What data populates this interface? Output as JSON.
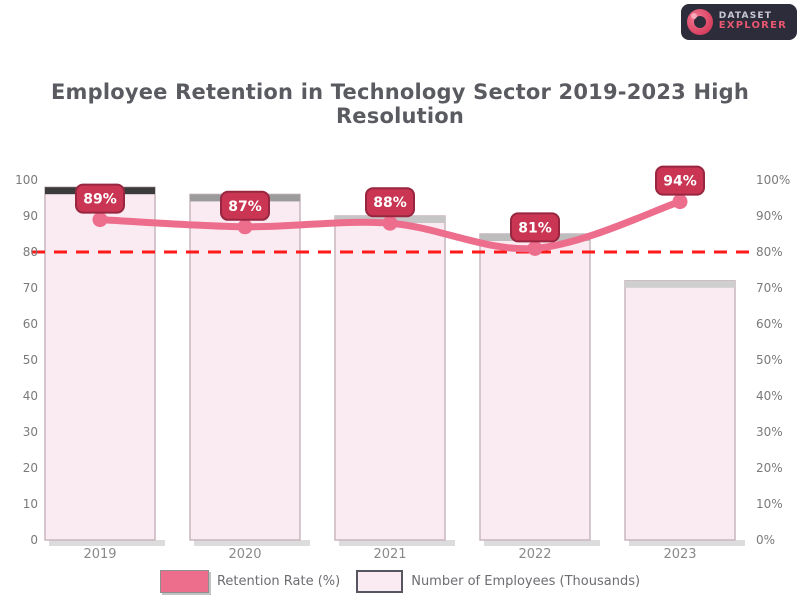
{
  "logo": {
    "line1": "DATASET",
    "line2": "EXPLORER",
    "icon": "magnifier-circle-icon"
  },
  "chart_data": {
    "type": "bar+line",
    "title": "Employee Retention in Technology Sector 2019-2023 High Resolution",
    "categories": [
      "2019",
      "2020",
      "2021",
      "2022",
      "2023"
    ],
    "series": [
      {
        "name": "Retention Rate (%)",
        "type": "line",
        "axis": "right",
        "values": [
          89,
          87,
          88,
          81,
          94
        ],
        "point_labels": [
          "89%",
          "87%",
          "88%",
          "81%",
          "94%"
        ],
        "color": "#ed6d8c"
      },
      {
        "name": "Number of Employees (Thousands)",
        "type": "bar",
        "axis": "left",
        "values": [
          98,
          96,
          90,
          85,
          72
        ],
        "color": "#faeaf1"
      }
    ],
    "threshold_line": {
      "value": 80,
      "color": "#ff1a1a",
      "style": "dashed"
    },
    "left_axis": {
      "min": 0,
      "max": 100,
      "ticks": [
        "0",
        "10",
        "20",
        "30",
        "40",
        "50",
        "60",
        "70",
        "80",
        "90",
        "100"
      ]
    },
    "right_axis": {
      "min": 0,
      "max": 100,
      "ticks": [
        "0%",
        "10%",
        "20%",
        "30%",
        "40%",
        "50%",
        "60%",
        "70%",
        "80%",
        "90%",
        "100%"
      ]
    },
    "grid": false,
    "legend_position": "bottom"
  },
  "legend": {
    "items": [
      {
        "label": "Retention Rate (%)",
        "swatch_color": "#ed6d8c"
      },
      {
        "label": "Number of Employees (Thousands)",
        "swatch_color": "#faeaf1",
        "swatch_border": "#55565f"
      }
    ]
  },
  "colors": {
    "line": "#ed6d8c",
    "marker": "#ed6d8c",
    "pill_fill": "#c93552",
    "pill_border": "#992640",
    "pill_text": "#ffffff",
    "bar_fill": "#faeaf1",
    "bar_border": "#c9b6bf",
    "bar_top_shades": [
      "#3b3b3b",
      "#9b9b9b",
      "#c6c6c6",
      "#bdbdbd",
      "#cfcfcf"
    ],
    "bar_bottom_shadow": "#dcdcdc",
    "threshold": "#ff1a1a",
    "tick_text": "#7a7a7a",
    "x_label_text": "#8a8a8a",
    "title_text": "#5a5b60"
  }
}
